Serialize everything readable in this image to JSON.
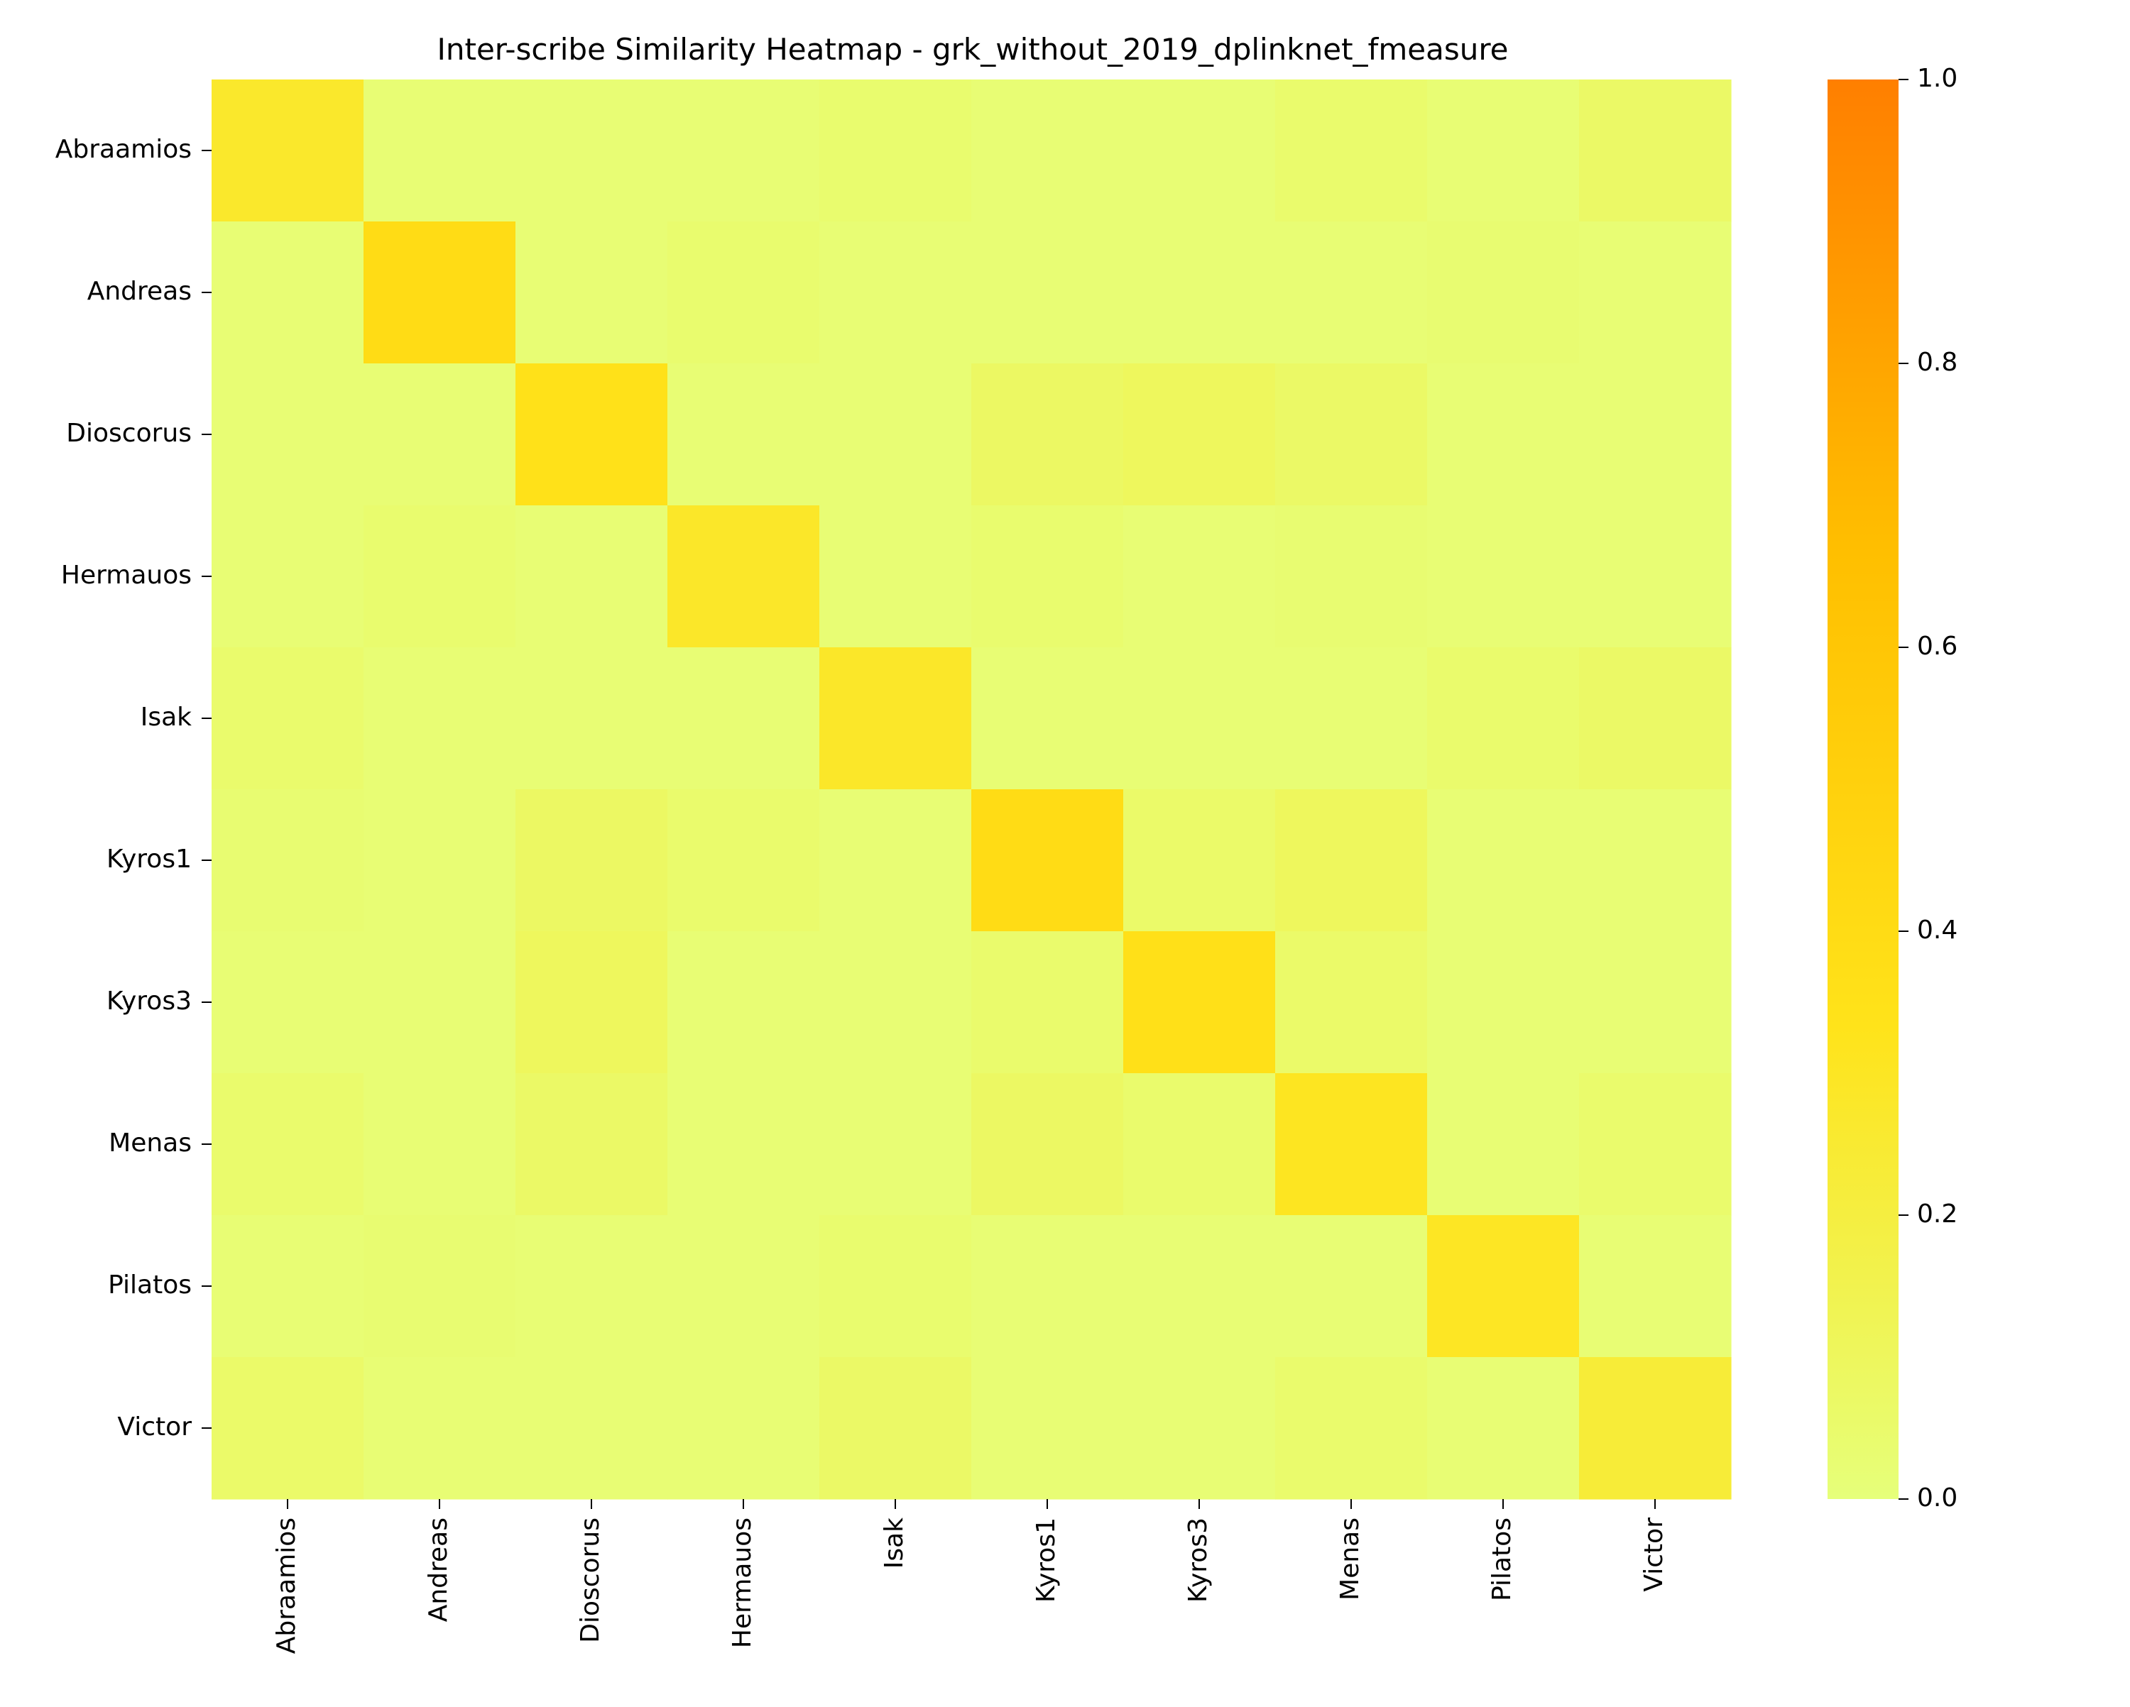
{
  "chart_data": {
    "type": "heatmap",
    "title": "Inter-scribe Similarity Heatmap - grk_without_2019_dplinknet_fmeasure",
    "xlabel": "",
    "ylabel": "",
    "rows": [
      "Abraamios",
      "Andreas",
      "Dioscorus",
      "Hermauos",
      "Isak",
      "Kyros1",
      "Kyros3",
      "Menas",
      "Pilatos",
      "Victor"
    ],
    "columns": [
      "Abraamios",
      "Andreas",
      "Dioscorus",
      "Hermauos",
      "Isak",
      "Kyros1",
      "Kyros3",
      "Menas",
      "Pilatos",
      "Victor"
    ],
    "values": [
      [
        0.27,
        0.02,
        0.02,
        0.02,
        0.04,
        0.02,
        0.02,
        0.05,
        0.02,
        0.07
      ],
      [
        0.02,
        0.4,
        0.02,
        0.04,
        0.02,
        0.02,
        0.02,
        0.02,
        0.03,
        0.02
      ],
      [
        0.02,
        0.02,
        0.35,
        0.02,
        0.02,
        0.08,
        0.1,
        0.07,
        0.02,
        0.02
      ],
      [
        0.02,
        0.04,
        0.02,
        0.28,
        0.02,
        0.04,
        0.02,
        0.03,
        0.02,
        0.02
      ],
      [
        0.05,
        0.02,
        0.02,
        0.02,
        0.28,
        0.02,
        0.02,
        0.02,
        0.05,
        0.07
      ],
      [
        0.03,
        0.02,
        0.08,
        0.05,
        0.02,
        0.4,
        0.06,
        0.1,
        0.02,
        0.02
      ],
      [
        0.02,
        0.02,
        0.1,
        0.02,
        0.02,
        0.05,
        0.36,
        0.06,
        0.02,
        0.02
      ],
      [
        0.05,
        0.02,
        0.07,
        0.02,
        0.02,
        0.08,
        0.05,
        0.31,
        0.02,
        0.05
      ],
      [
        0.02,
        0.03,
        0.02,
        0.02,
        0.04,
        0.02,
        0.02,
        0.02,
        0.3,
        0.02
      ],
      [
        0.06,
        0.02,
        0.02,
        0.02,
        0.07,
        0.02,
        0.02,
        0.05,
        0.02,
        0.23
      ]
    ],
    "colorbar": {
      "range": [
        0.0,
        1.0
      ],
      "ticks": [
        "0.0",
        "0.2",
        "0.4",
        "0.6",
        "0.8",
        "1.0"
      ],
      "colors": [
        "#e6ff7a",
        "#ffe31a",
        "#ffbf00",
        "#ff7f00"
      ]
    },
    "grid": false,
    "legend": "colorbar-right"
  }
}
